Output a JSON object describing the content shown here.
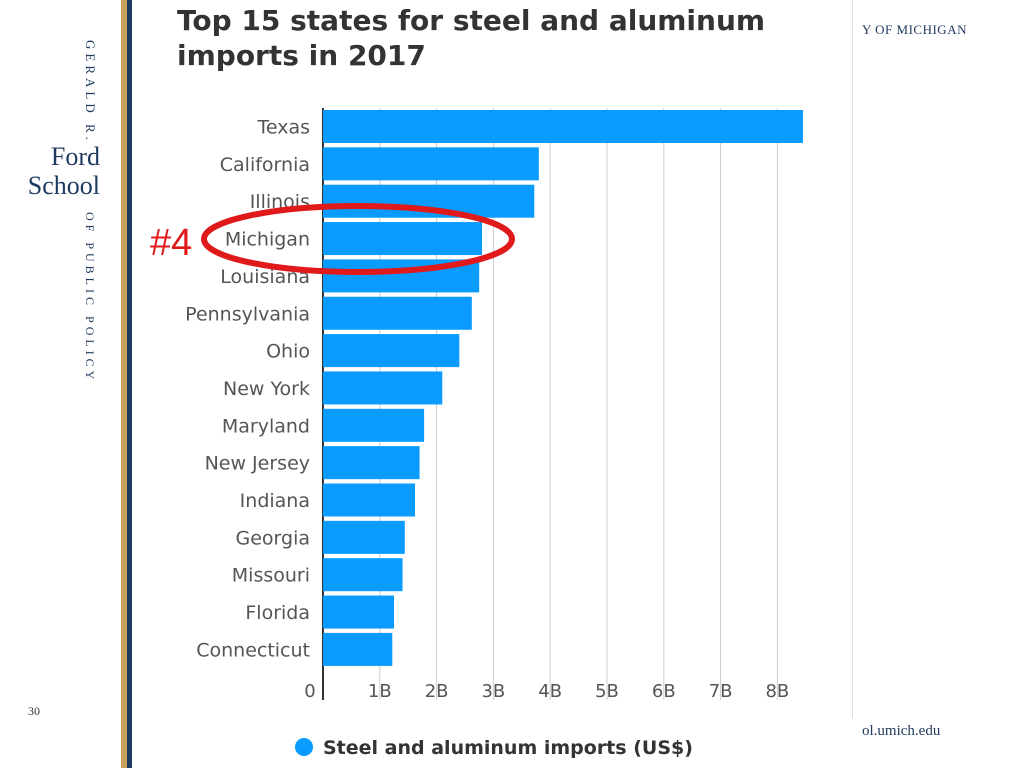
{
  "slide": {
    "sidebar_top": "GERALD R.",
    "brand_line1": "Ford",
    "brand_line2": "School",
    "sidebar_bottom": "OF PUBLIC POLICY",
    "header_right": "Y OF MICHIGAN",
    "footer_right": "ol.umich.edu",
    "page_number": "30",
    "annotation": "#4",
    "colors": {
      "navy": "#1f3a5f",
      "gold": "#c9a15a",
      "bar": "#0a9bff",
      "highlight": "#e0191b"
    }
  },
  "chart_data": {
    "type": "bar",
    "orientation": "horizontal",
    "title": "Top 15 states for steel and aluminum imports in 2017",
    "categories": [
      "Texas",
      "California",
      "Illinois",
      "Michigan",
      "Louisiana",
      "Pennsylvania",
      "Ohio",
      "New York",
      "Maryland",
      "New Jersey",
      "Indiana",
      "Georgia",
      "Missouri",
      "Florida",
      "Connecticut"
    ],
    "values": [
      8.45,
      3.8,
      3.72,
      2.8,
      2.75,
      2.62,
      2.4,
      2.1,
      1.78,
      1.7,
      1.62,
      1.44,
      1.4,
      1.25,
      1.22
    ],
    "xlim": [
      0,
      8.5
    ],
    "x_ticks": [
      "0",
      "1B",
      "2B",
      "3B",
      "4B",
      "5B",
      "6B",
      "7B",
      "8B"
    ],
    "legend": "Steel and aluminum imports (US$)",
    "legend_position": "bottom",
    "grid": true,
    "highlighted_category": "Michigan"
  }
}
